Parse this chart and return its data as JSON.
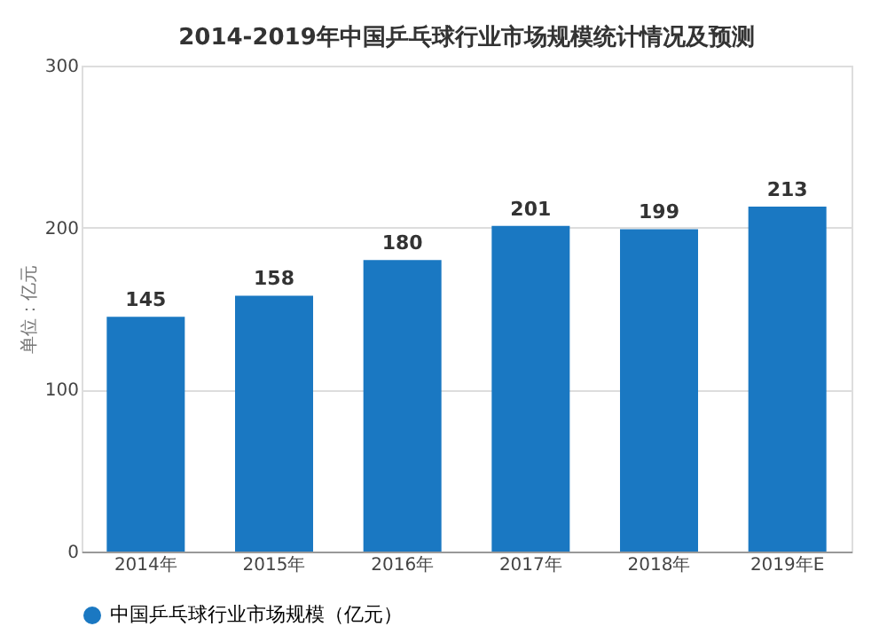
{
  "chart_data": {
    "type": "bar",
    "title": "2014-2019年中国乒乓球行业市场规模统计情况及预测",
    "ylabel": "单位：亿元",
    "categories": [
      "2014年",
      "2015年",
      "2016年",
      "2017年",
      "2018年",
      "2019年E"
    ],
    "series": [
      {
        "name": "中国乒乓球行业市场规模（亿元）",
        "color": "#1a78c2",
        "values": [
          145,
          158,
          180,
          201,
          199,
          213
        ]
      }
    ],
    "ylim": [
      0,
      300
    ],
    "yticks": [
      0,
      100,
      200,
      300
    ],
    "grid": "y",
    "legend": "bottom",
    "data_labels": true
  }
}
